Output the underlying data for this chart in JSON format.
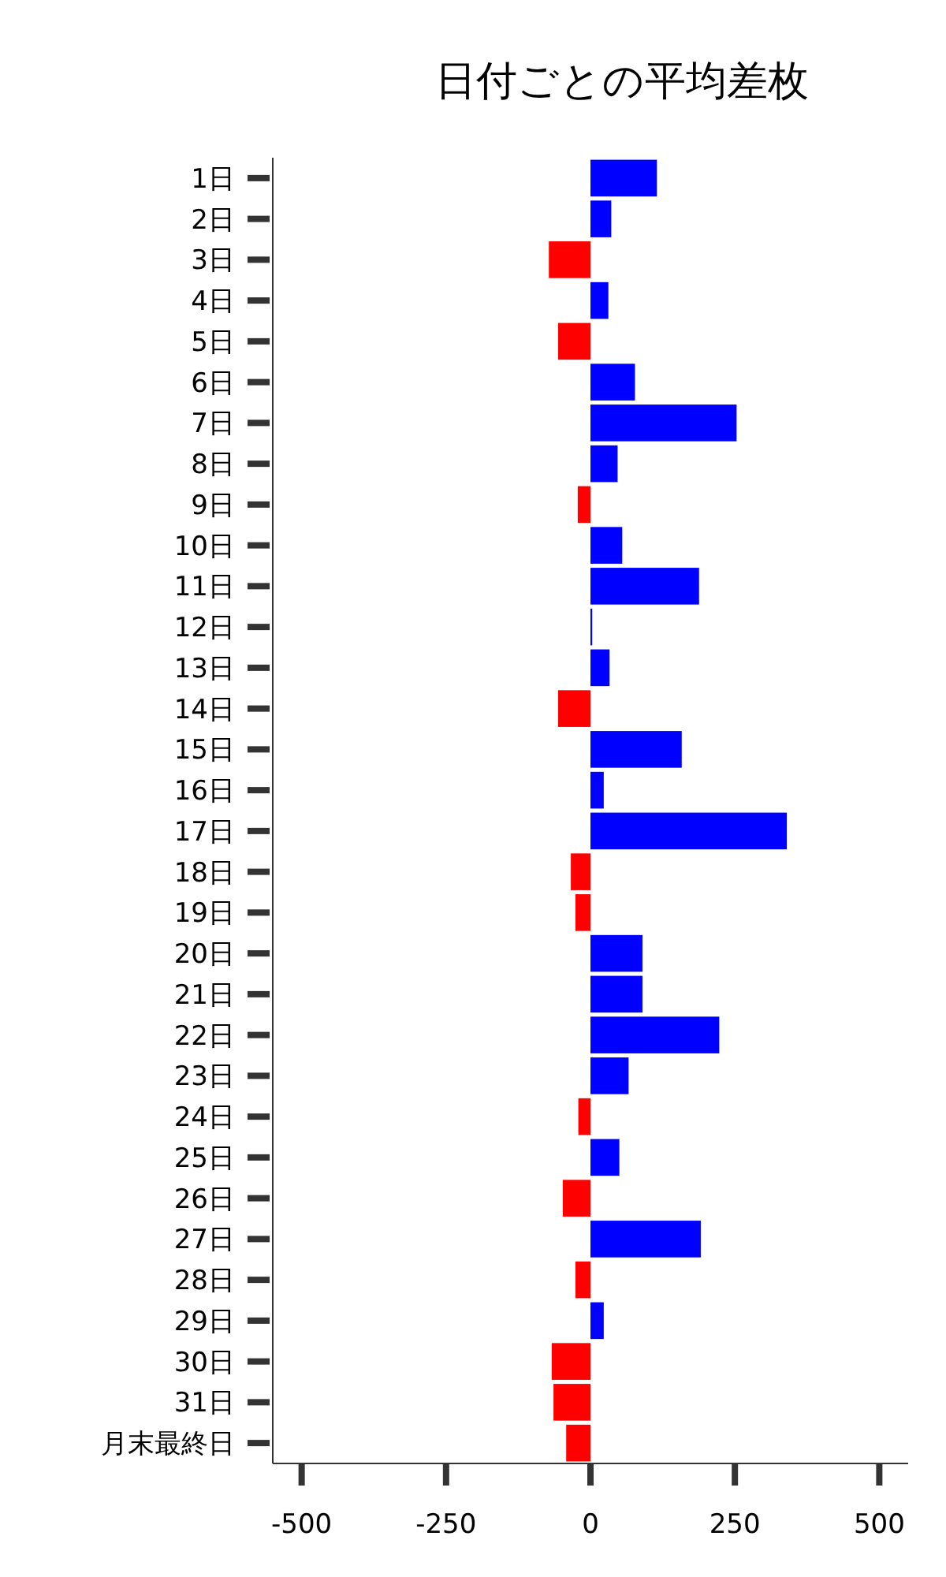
{
  "chart_data": {
    "type": "bar",
    "orientation": "horizontal",
    "title": "日付ごとの平均差枚",
    "categories": [
      "1日",
      "2日",
      "3日",
      "4日",
      "5日",
      "6日",
      "7日",
      "8日",
      "9日",
      "10日",
      "11日",
      "12日",
      "13日",
      "14日",
      "15日",
      "16日",
      "17日",
      "18日",
      "19日",
      "20日",
      "21日",
      "22日",
      "23日",
      "24日",
      "25日",
      "26日",
      "27日",
      "28日",
      "29日",
      "30日",
      "31日",
      "月末最終日"
    ],
    "values": [
      115,
      36,
      -72,
      31,
      -56,
      77,
      253,
      47,
      -22,
      55,
      188,
      3,
      33,
      -56,
      158,
      23,
      340,
      -34,
      -26,
      90,
      90,
      223,
      66,
      -21,
      50,
      -48,
      191,
      -26,
      23,
      -67,
      -64,
      -42
    ],
    "colors": [
      "#0000ff",
      "#0000ff",
      "#ff0000",
      "#0000ff",
      "#ff0000",
      "#0000ff",
      "#0000ff",
      "#0000ff",
      "#ff0000",
      "#0000ff",
      "#0000ff",
      "#0000ff",
      "#0000ff",
      "#ff0000",
      "#0000ff",
      "#0000ff",
      "#0000ff",
      "#ff0000",
      "#ff0000",
      "#0000ff",
      "#0000ff",
      "#0000ff",
      "#0000ff",
      "#ff0000",
      "#0000ff",
      "#ff0000",
      "#0000ff",
      "#ff0000",
      "#0000ff",
      "#ff0000",
      "#ff0000",
      "#ff0000"
    ],
    "xlim": [
      -550,
      550
    ],
    "xticks": [
      -500,
      -250,
      0,
      250,
      500
    ],
    "grid": false
  }
}
